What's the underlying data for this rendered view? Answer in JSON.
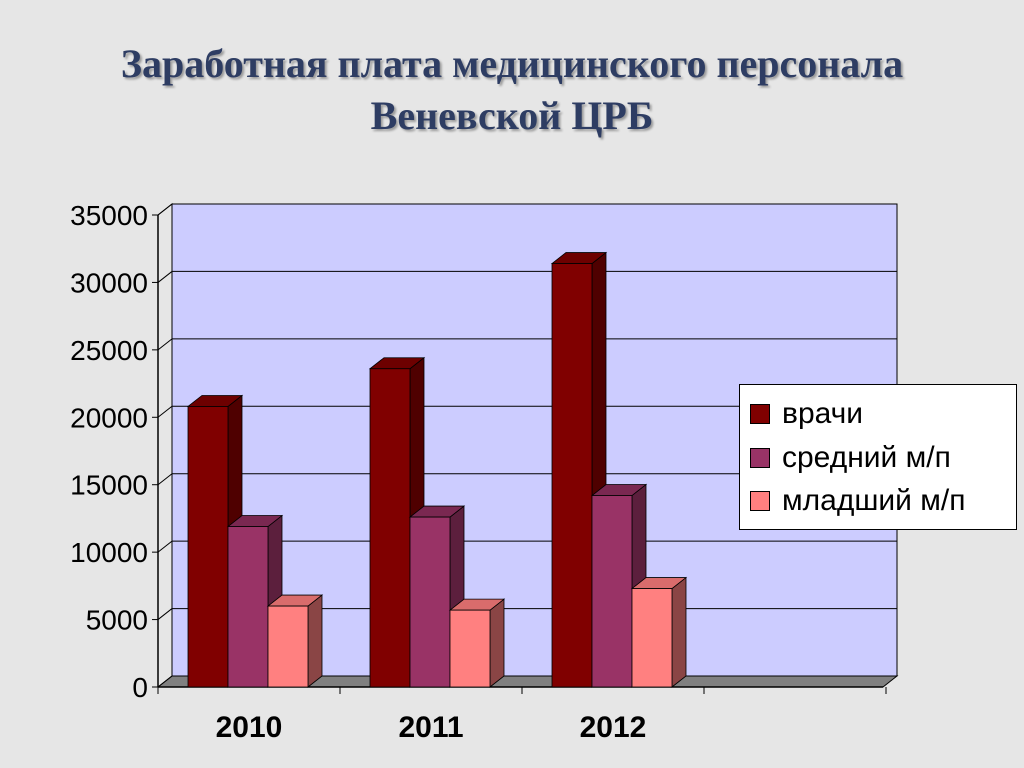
{
  "title_lines": [
    "Заработная плата медицинского персонала",
    "Веневской ЦРБ"
  ],
  "chart_data": {
    "type": "bar",
    "title": "Заработная плата медицинского персонала Веневской ЦРБ",
    "categories": [
      "2010",
      "2011",
      "2012"
    ],
    "series": [
      {
        "name": "врачи",
        "values": [
          20800,
          23600,
          31400
        ],
        "color": "#800000",
        "dark": "#4f0000",
        "light": "#6d0000"
      },
      {
        "name": "средний м/п",
        "values": [
          11900,
          12600,
          14200
        ],
        "color": "#993366",
        "dark": "#5c1f3d",
        "light": "#7a2851"
      },
      {
        "name": "младший м/п",
        "values": [
          6000,
          5700,
          7300
        ],
        "color": "#ff8080",
        "dark": "#8a4545",
        "light": "#d96c6c"
      }
    ],
    "y_ticks": [
      "0",
      "5000",
      "10000",
      "15000",
      "20000",
      "25000",
      "30000",
      "35000"
    ],
    "ylim": [
      0,
      35000
    ],
    "grid": true,
    "legend_position": "right",
    "plot_background": "#ccccff"
  }
}
